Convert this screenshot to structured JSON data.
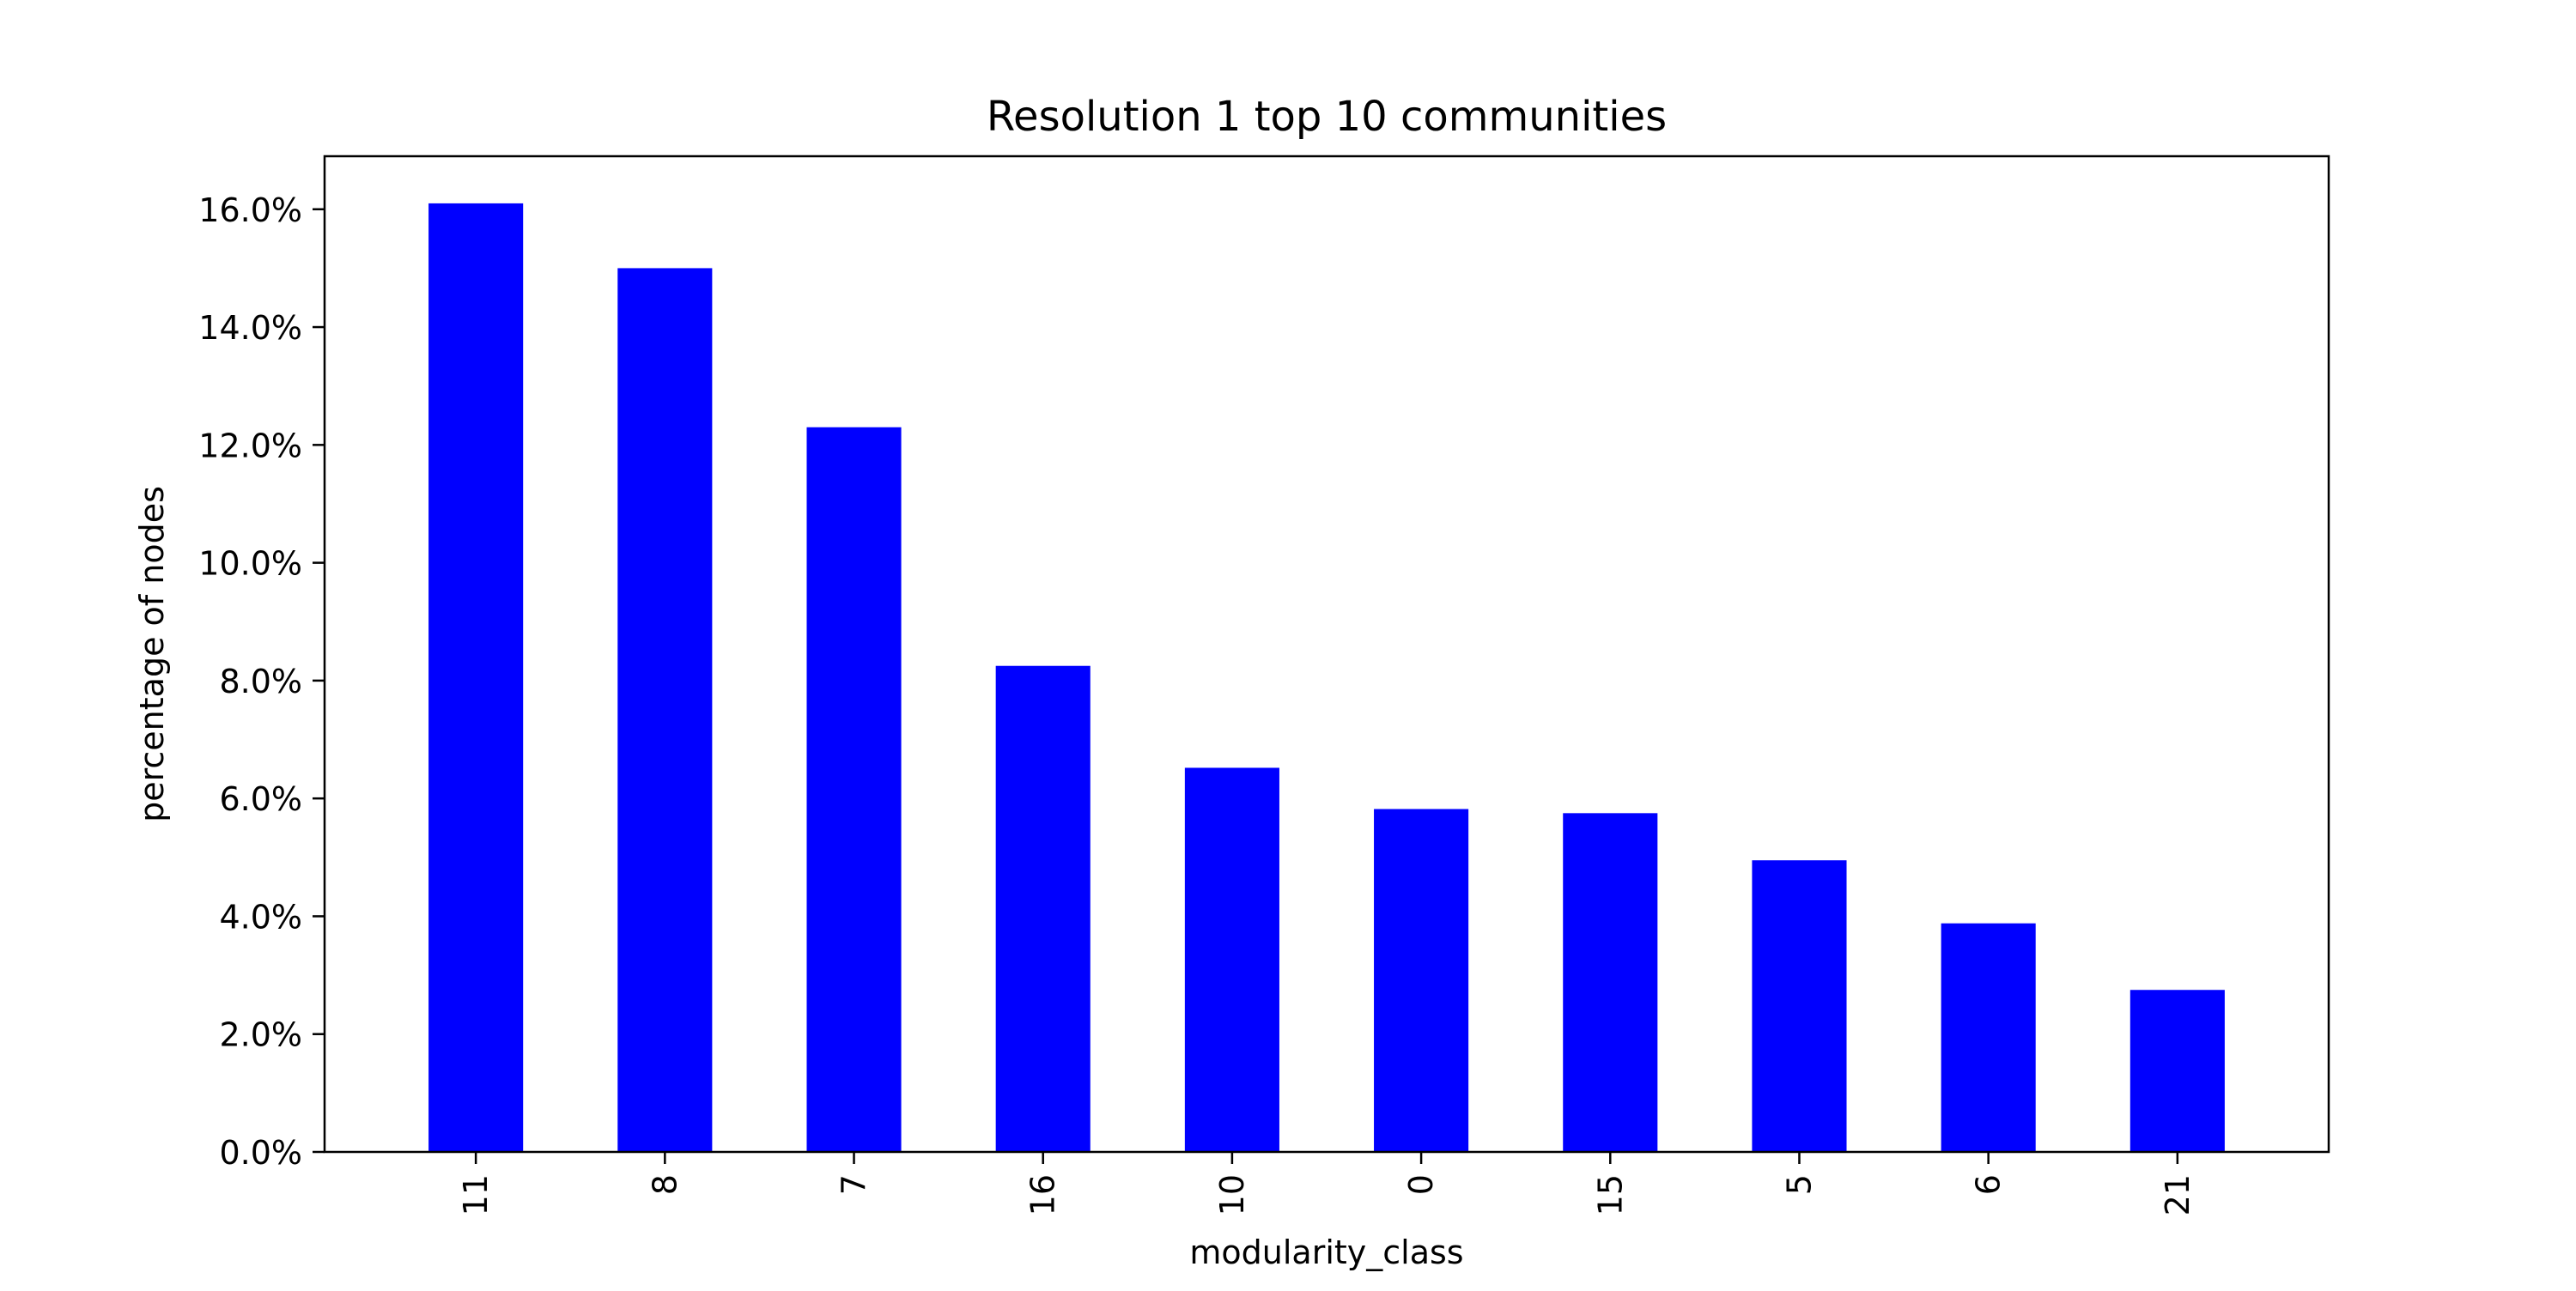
{
  "chart_data": {
    "type": "bar",
    "title": "Resolution 1 top 10 communities",
    "xlabel": "modularity_class",
    "ylabel": "percentage of nodes",
    "categories": [
      "11",
      "8",
      "7",
      "16",
      "10",
      "0",
      "15",
      "5",
      "6",
      "21"
    ],
    "values": [
      16.1,
      15.0,
      12.3,
      8.25,
      6.52,
      5.82,
      5.75,
      4.95,
      3.88,
      2.75
    ],
    "ylim": [
      0,
      16.9
    ],
    "yticks": [
      0,
      2,
      4,
      6,
      8,
      10,
      12,
      14,
      16
    ],
    "ytick_labels": [
      "0.0%",
      "2.0%",
      "4.0%",
      "6.0%",
      "8.0%",
      "10.0%",
      "12.0%",
      "14.0%",
      "16.0%"
    ],
    "bar_color": "#0000ff",
    "grid": false,
    "legend": false
  }
}
